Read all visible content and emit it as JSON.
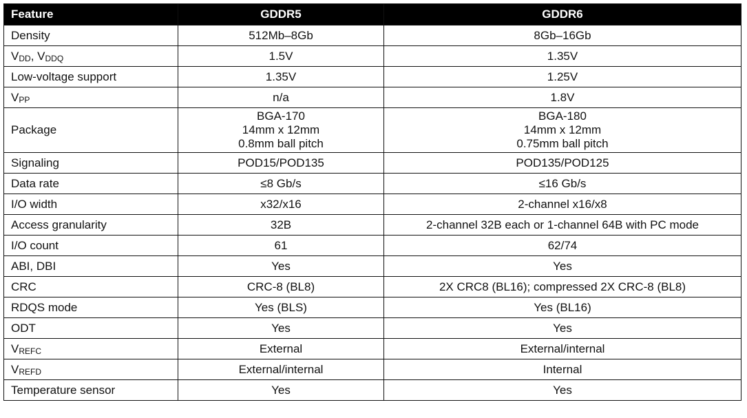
{
  "header": {
    "feature": "Feature",
    "gddr5": "GDDR5",
    "gddr6": "GDDR6"
  },
  "rows": [
    {
      "label": [
        {
          "t": "Density"
        }
      ],
      "gddr5": [
        "512Mb–8Gb"
      ],
      "gddr6": [
        "8Gb–16Gb"
      ]
    },
    {
      "label": [
        {
          "t": "V"
        },
        {
          "s": "DD"
        },
        {
          "t": ", V"
        },
        {
          "s": "DDQ"
        }
      ],
      "gddr5": [
        "1.5V"
      ],
      "gddr6": [
        "1.35V"
      ]
    },
    {
      "label": [
        {
          "t": "Low-voltage support"
        }
      ],
      "gddr5": [
        "1.35V"
      ],
      "gddr6": [
        "1.25V"
      ]
    },
    {
      "label": [
        {
          "t": "V"
        },
        {
          "s": "PP"
        }
      ],
      "gddr5": [
        "n/a"
      ],
      "gddr6": [
        "1.8V"
      ]
    },
    {
      "label": [
        {
          "t": "Package"
        }
      ],
      "gddr5": [
        "BGA-170",
        "14mm x 12mm",
        "0.8mm ball pitch"
      ],
      "gddr6": [
        "BGA-180",
        "14mm x 12mm",
        "0.75mm ball pitch"
      ]
    },
    {
      "label": [
        {
          "t": "Signaling"
        }
      ],
      "gddr5": [
        "POD15/POD135"
      ],
      "gddr6": [
        "POD135/POD125"
      ]
    },
    {
      "label": [
        {
          "t": "Data rate"
        }
      ],
      "gddr5": [
        "≤8 Gb/s"
      ],
      "gddr6": [
        "≤16 Gb/s"
      ]
    },
    {
      "label": [
        {
          "t": "I/O width"
        }
      ],
      "gddr5": [
        "x32/x16"
      ],
      "gddr6": [
        "2-channel x16/x8"
      ]
    },
    {
      "label": [
        {
          "t": "Access granularity"
        }
      ],
      "gddr5": [
        "32B"
      ],
      "gddr6": [
        "2-channel 32B each or 1-channel 64B with PC mode"
      ]
    },
    {
      "label": [
        {
          "t": "I/O count"
        }
      ],
      "gddr5": [
        "61"
      ],
      "gddr6": [
        "62/74"
      ]
    },
    {
      "label": [
        {
          "t": "ABI, DBI"
        }
      ],
      "gddr5": [
        "Yes"
      ],
      "gddr6": [
        "Yes"
      ]
    },
    {
      "label": [
        {
          "t": "CRC"
        }
      ],
      "gddr5": [
        "CRC-8 (BL8)"
      ],
      "gddr6": [
        "2X CRC8 (BL16); compressed 2X CRC-8 (BL8)"
      ]
    },
    {
      "label": [
        {
          "t": "RDQS mode"
        }
      ],
      "gddr5": [
        "Yes (BLS)"
      ],
      "gddr6": [
        "Yes (BL16)"
      ]
    },
    {
      "label": [
        {
          "t": "ODT"
        }
      ],
      "gddr5": [
        "Yes"
      ],
      "gddr6": [
        "Yes"
      ]
    },
    {
      "label": [
        {
          "t": "V"
        },
        {
          "s": "REFC"
        }
      ],
      "gddr5": [
        "External"
      ],
      "gddr6": [
        "External/internal"
      ]
    },
    {
      "label": [
        {
          "t": "V"
        },
        {
          "s": "REFD"
        }
      ],
      "gddr5": [
        "External/internal"
      ],
      "gddr6": [
        "Internal"
      ]
    },
    {
      "label": [
        {
          "t": "Temperature sensor"
        }
      ],
      "gddr5": [
        "Yes"
      ],
      "gddr6": [
        "Yes"
      ]
    }
  ]
}
